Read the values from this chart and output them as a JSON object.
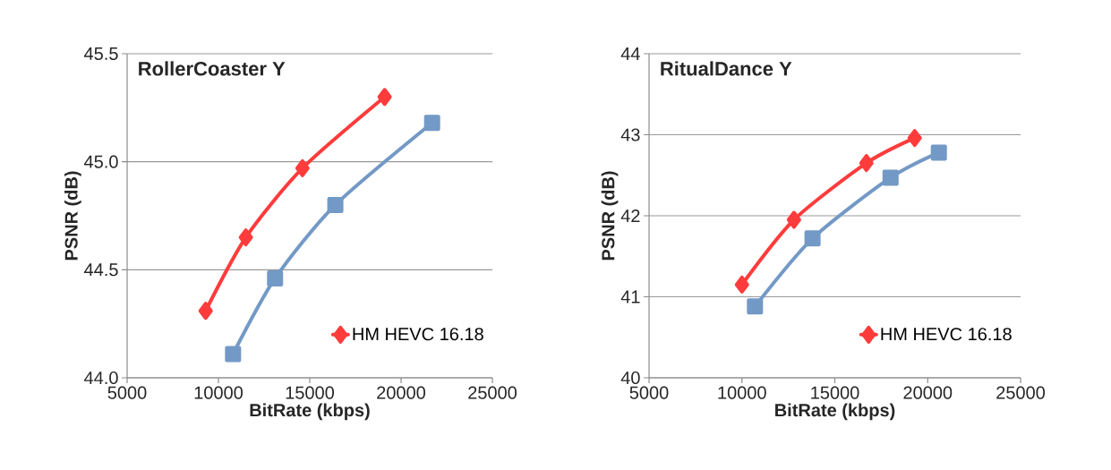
{
  "chart_data": [
    {
      "type": "line",
      "title": "RollerCoaster Y",
      "xlabel": "BitRate (kbps)",
      "ylabel": "PSNR (dB)",
      "xlim": [
        5000,
        25000
      ],
      "xticks": [
        5000,
        10000,
        15000,
        20000,
        25000
      ],
      "ylim": [
        44.0,
        45.5
      ],
      "yticks": [
        {
          "value": 44.0,
          "label": "44.0"
        },
        44.5,
        {
          "value": 45.0,
          "label": "45.0"
        },
        45.5
      ],
      "grid": "y",
      "legend": "bottom right",
      "series": [
        {
          "name": "HM HEVC 16.18",
          "color": "#ff3b3b",
          "marker": "diamond",
          "x": [
            9300,
            11500,
            14600,
            19100
          ],
          "values": [
            44.31,
            44.65,
            44.97,
            45.3
          ]
        },
        {
          "color": "#7399c6",
          "marker": "square",
          "x": [
            10800,
            13100,
            16400,
            21700
          ],
          "values": [
            44.11,
            44.46,
            44.8,
            45.18
          ]
        }
      ]
    },
    {
      "type": "line",
      "title": "RitualDance Y",
      "xlabel": "BitRate (kbps)",
      "ylabel": "PSNR (dB)",
      "xlim": [
        5000,
        25000
      ],
      "xticks": [
        5000,
        10000,
        15000,
        20000,
        25000
      ],
      "ylim": [
        40,
        44
      ],
      "yticks": [
        40,
        41,
        42,
        43,
        44
      ],
      "grid": "y",
      "legend": "bottom right",
      "series": [
        {
          "name": "HM HEVC 16.18",
          "color": "#ff3b3b",
          "marker": "diamond",
          "x": [
            10000,
            12800,
            16700,
            19300
          ],
          "values": [
            41.15,
            41.95,
            42.65,
            42.96
          ]
        },
        {
          "color": "#7399c6",
          "marker": "square",
          "x": [
            10700,
            13800,
            18000,
            20600
          ],
          "values": [
            40.88,
            41.72,
            42.47,
            42.78
          ]
        }
      ]
    }
  ]
}
